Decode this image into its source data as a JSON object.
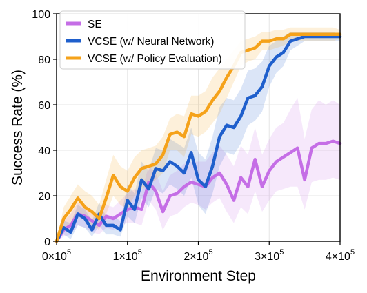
{
  "chart_data": {
    "type": "line",
    "xlabel": "Environment Step",
    "ylabel": "Success Rate (%)",
    "xlim": [
      0,
      400000
    ],
    "ylim": [
      0,
      100
    ],
    "xticks": [
      {
        "value": 0,
        "base": "0×10",
        "exp": "5"
      },
      {
        "value": 100000,
        "base": "1×10",
        "exp": "5"
      },
      {
        "value": 200000,
        "base": "2×10",
        "exp": "5"
      },
      {
        "value": 300000,
        "base": "3×10",
        "exp": "5"
      },
      {
        "value": 400000,
        "base": "4×10",
        "exp": "5"
      }
    ],
    "yticks": [
      {
        "value": 0,
        "label": "0"
      },
      {
        "value": 20,
        "label": "20"
      },
      {
        "value": 40,
        "label": "40"
      },
      {
        "value": 60,
        "label": "60"
      },
      {
        "value": 80,
        "label": "80"
      },
      {
        "value": 100,
        "label": "100"
      }
    ],
    "grid": true,
    "legend_position": "top-left",
    "x": [
      0,
      10000,
      20000,
      30000,
      40000,
      50000,
      60000,
      70000,
      80000,
      90000,
      100000,
      110000,
      120000,
      130000,
      140000,
      150000,
      160000,
      170000,
      180000,
      190000,
      200000,
      210000,
      220000,
      230000,
      240000,
      250000,
      260000,
      270000,
      280000,
      290000,
      300000,
      310000,
      320000,
      330000,
      340000,
      350000,
      360000,
      370000,
      380000,
      390000,
      400000
    ],
    "series": [
      {
        "name": "SE",
        "color": "#c56ee6",
        "values": [
          0,
          5,
          7,
          12,
          11,
          9,
          7,
          11,
          10,
          12,
          14,
          15,
          14,
          26,
          22,
          13,
          20,
          21,
          24,
          26,
          25,
          24,
          28,
          30,
          25,
          18,
          28,
          24,
          36,
          24,
          31,
          35,
          37,
          39,
          41,
          27,
          41,
          43,
          43,
          44,
          43
        ],
        "upper": [
          0,
          9,
          12,
          17,
          16,
          14,
          11,
          16,
          15,
          18,
          21,
          23,
          22,
          33,
          30,
          22,
          29,
          31,
          34,
          35,
          35,
          35,
          39,
          42,
          38,
          33,
          42,
          38,
          50,
          38,
          45,
          50,
          52,
          58,
          63,
          45,
          58,
          62,
          60,
          62,
          60
        ],
        "lower": [
          0,
          2,
          3,
          7,
          6,
          4,
          3,
          6,
          5,
          7,
          8,
          8,
          7,
          18,
          14,
          5,
          11,
          12,
          15,
          17,
          16,
          14,
          17,
          19,
          13,
          8,
          15,
          12,
          22,
          13,
          18,
          22,
          23,
          24,
          24,
          14,
          26,
          27,
          27,
          28,
          27
        ]
      },
      {
        "name": "VCSE (w/ Neural Network)",
        "color": "#1f5fcc",
        "values": [
          0,
          6,
          4,
          12,
          10,
          5,
          12,
          7,
          7,
          5,
          18,
          14,
          27,
          23,
          32,
          31,
          35,
          33,
          30,
          39,
          27,
          24,
          33,
          46,
          51,
          50,
          55,
          63,
          64,
          68,
          77,
          81,
          83,
          88,
          89,
          90,
          90,
          90,
          90,
          90,
          90
        ],
        "upper": [
          0,
          9,
          8,
          16,
          14,
          9,
          17,
          11,
          11,
          9,
          25,
          21,
          35,
          31,
          41,
          40,
          45,
          43,
          41,
          50,
          39,
          36,
          46,
          59,
          63,
          62,
          67,
          75,
          76,
          79,
          86,
          88,
          90,
          92,
          92,
          92,
          92,
          92,
          92,
          92,
          91
        ],
        "lower": [
          0,
          3,
          1,
          7,
          6,
          2,
          7,
          3,
          3,
          2,
          11,
          8,
          19,
          15,
          23,
          21,
          25,
          23,
          20,
          28,
          16,
          12,
          21,
          33,
          39,
          38,
          43,
          51,
          53,
          57,
          68,
          74,
          77,
          84,
          86,
          88,
          88,
          88,
          88,
          88,
          88
        ]
      },
      {
        "name": "VCSE (w/ Policy Evaluation)",
        "color": "#f5a21a",
        "values": [
          0,
          10,
          14,
          19,
          15,
          13,
          10,
          19,
          29,
          24,
          22,
          28,
          32,
          33,
          34,
          38,
          47,
          48,
          46,
          56,
          55,
          57,
          62,
          66,
          72,
          77,
          83,
          84,
          85,
          88,
          88,
          89,
          89,
          91,
          91,
          91,
          91,
          91,
          91,
          91,
          91
        ],
        "upper": [
          0,
          15,
          20,
          25,
          22,
          20,
          16,
          27,
          38,
          33,
          31,
          37,
          40,
          41,
          42,
          46,
          54,
          56,
          55,
          64,
          64,
          66,
          72,
          76,
          80,
          84,
          88,
          89,
          90,
          92,
          92,
          93,
          93,
          94,
          94,
          94,
          94,
          94,
          94,
          94,
          93
        ],
        "lower": [
          0,
          5,
          8,
          13,
          9,
          7,
          5,
          12,
          20,
          16,
          14,
          20,
          23,
          25,
          27,
          30,
          40,
          40,
          37,
          47,
          46,
          48,
          52,
          56,
          63,
          70,
          77,
          79,
          80,
          84,
          84,
          85,
          86,
          88,
          88,
          88,
          88,
          88,
          88,
          88,
          89
        ]
      }
    ]
  }
}
